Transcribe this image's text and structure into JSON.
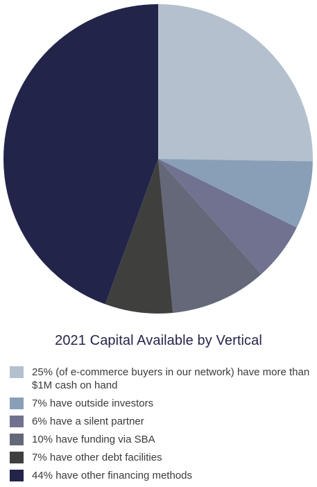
{
  "chart_data": {
    "type": "pie",
    "title": "2021 Capital Available by Vertical",
    "legend_position": "bottom",
    "start_angle": "12 o'clock, clockwise",
    "slices": [
      {
        "label": "25% (of e-commerce buyers in our network) have more than $1M cash on hand",
        "value": 25,
        "color": "#b4c0ce"
      },
      {
        "label": "7% have outside investors",
        "value": 7,
        "color": "#889fb7"
      },
      {
        "label": "6% have a silent partner",
        "value": 6,
        "color": "#707290"
      },
      {
        "label": "10% have funding via SBA",
        "value": 10,
        "color": "#646878"
      },
      {
        "label": "7% have other debt facilities",
        "value": 7,
        "color": "#3f403e"
      },
      {
        "label": "44% have other financing methods",
        "value": 44,
        "color": "#23244a"
      }
    ]
  }
}
